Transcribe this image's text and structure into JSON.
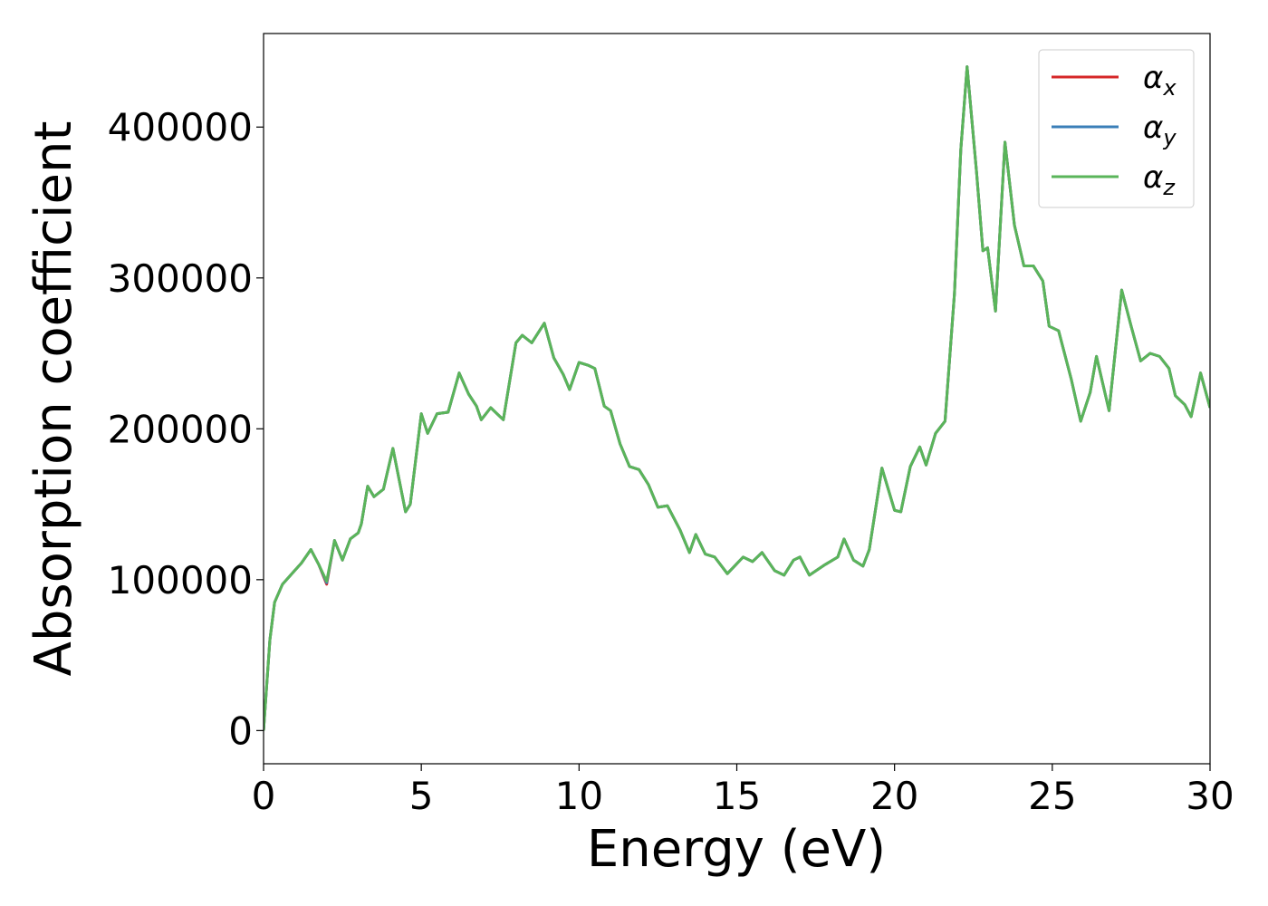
{
  "chart_data": {
    "type": "line",
    "xlabel": "Energy (eV)",
    "ylabel": "Absorption coefficient",
    "x": [
      0,
      0.1,
      0.2,
      0.35,
      0.6,
      0.9,
      1.2,
      1.5,
      1.75,
      2.0,
      2.25,
      2.5,
      2.75,
      3.0,
      3.1,
      3.3,
      3.5,
      3.8,
      4.1,
      4.5,
      4.65,
      5.0,
      5.2,
      5.5,
      5.85,
      6.2,
      6.5,
      6.75,
      6.9,
      7.2,
      7.6,
      8.0,
      8.2,
      8.5,
      8.9,
      9.2,
      9.5,
      9.7,
      10.0,
      10.3,
      10.5,
      10.8,
      11.0,
      11.3,
      11.6,
      11.9,
      12.2,
      12.5,
      12.8,
      13.2,
      13.5,
      13.7,
      14.0,
      14.3,
      14.7,
      15.2,
      15.5,
      15.8,
      16.2,
      16.5,
      16.8,
      17.0,
      17.3,
      17.8,
      18.2,
      18.4,
      18.7,
      19.0,
      19.2,
      19.6,
      20.0,
      20.2,
      20.5,
      20.8,
      21.0,
      21.3,
      21.6,
      21.9,
      22.1,
      22.3,
      22.6,
      22.8,
      22.95,
      23.2,
      23.5,
      23.8,
      24.1,
      24.4,
      24.7,
      24.9,
      25.2,
      25.6,
      25.9,
      26.2,
      26.4,
      26.8,
      27.2,
      27.5,
      27.8,
      28.1,
      28.4,
      28.7,
      28.9,
      29.2,
      29.4,
      29.7,
      30.0
    ],
    "series": [
      {
        "name": "αx",
        "color": "#d62728",
        "values": [
          0,
          30000,
          60000,
          85000,
          97000,
          104000,
          111000,
          120000,
          110000,
          97000,
          126000,
          113000,
          127000,
          131000,
          137000,
          162000,
          155000,
          160000,
          187000,
          145000,
          150000,
          210000,
          197000,
          210000,
          211000,
          237000,
          223000,
          215000,
          206000,
          214000,
          206000,
          257000,
          262000,
          257000,
          270000,
          247000,
          236000,
          226000,
          244000,
          242000,
          240000,
          215000,
          212000,
          190000,
          175000,
          173000,
          163000,
          148000,
          149000,
          133000,
          118000,
          130000,
          117000,
          115000,
          104000,
          115000,
          112000,
          118000,
          106000,
          103000,
          113000,
          115000,
          103000,
          110000,
          115000,
          127000,
          113000,
          109000,
          120000,
          174000,
          146000,
          145000,
          175000,
          188000,
          176000,
          197000,
          205000,
          290000,
          385000,
          440000,
          370000,
          318000,
          320000,
          278000,
          390000,
          335000,
          308000,
          308000,
          298000,
          268000,
          265000,
          233000,
          205000,
          224000,
          248000,
          212000,
          292000,
          268000,
          245000,
          250000,
          248000,
          240000,
          222000,
          216000,
          208000,
          237000,
          214000
        ]
      },
      {
        "name": "αy",
        "color": "#3b7fb8",
        "values": [
          0,
          30000,
          60000,
          85000,
          97000,
          104000,
          111000,
          120000,
          110000,
          98000,
          126000,
          113000,
          127000,
          131000,
          137000,
          162000,
          155000,
          160000,
          187000,
          145000,
          150000,
          210000,
          197000,
          210000,
          211000,
          237000,
          223000,
          215000,
          206000,
          214000,
          206000,
          257000,
          262000,
          257000,
          270000,
          247000,
          236000,
          226000,
          244000,
          242000,
          240000,
          215000,
          212000,
          190000,
          175000,
          173000,
          163000,
          148000,
          149000,
          133000,
          118000,
          130000,
          117000,
          115000,
          104000,
          115000,
          112000,
          118000,
          106000,
          103000,
          113000,
          115000,
          103000,
          110000,
          115000,
          127000,
          113000,
          109000,
          120000,
          174000,
          146000,
          145000,
          175000,
          188000,
          176000,
          197000,
          205000,
          290000,
          385000,
          440000,
          370000,
          318000,
          320000,
          278000,
          390000,
          335000,
          308000,
          308000,
          298000,
          268000,
          265000,
          233000,
          205000,
          224000,
          248000,
          212000,
          292000,
          268000,
          245000,
          250000,
          248000,
          240000,
          222000,
          216000,
          208000,
          237000,
          214000
        ]
      },
      {
        "name": "αz",
        "color": "#5ab55a",
        "values": [
          0,
          30000,
          60000,
          85000,
          97000,
          104000,
          111000,
          120000,
          110000,
          99000,
          126000,
          113000,
          127000,
          131000,
          137000,
          162000,
          155000,
          160000,
          187000,
          145000,
          150000,
          210000,
          197000,
          210000,
          211000,
          237000,
          223000,
          215000,
          206000,
          214000,
          206000,
          257000,
          262000,
          257000,
          270000,
          247000,
          236000,
          226000,
          244000,
          242000,
          240000,
          215000,
          212000,
          190000,
          175000,
          173000,
          163000,
          148000,
          149000,
          133000,
          118000,
          130000,
          117000,
          115000,
          104000,
          115000,
          112000,
          118000,
          106000,
          103000,
          113000,
          115000,
          103000,
          110000,
          115000,
          127000,
          113000,
          109000,
          120000,
          174000,
          146000,
          145000,
          175000,
          188000,
          176000,
          197000,
          205000,
          290000,
          385000,
          440000,
          370000,
          318000,
          320000,
          278000,
          390000,
          335000,
          308000,
          308000,
          298000,
          268000,
          265000,
          233000,
          205000,
          224000,
          248000,
          212000,
          292000,
          268000,
          245000,
          250000,
          248000,
          240000,
          222000,
          216000,
          208000,
          237000,
          214000
        ]
      }
    ],
    "xlim": [
      0,
      30
    ],
    "xticks": [
      0,
      5,
      10,
      15,
      20,
      25,
      30
    ],
    "ylim": [
      -22000,
      462000
    ],
    "yticks": [
      0,
      100000,
      200000,
      300000,
      400000
    ],
    "grid": false,
    "legend": "upper right"
  }
}
